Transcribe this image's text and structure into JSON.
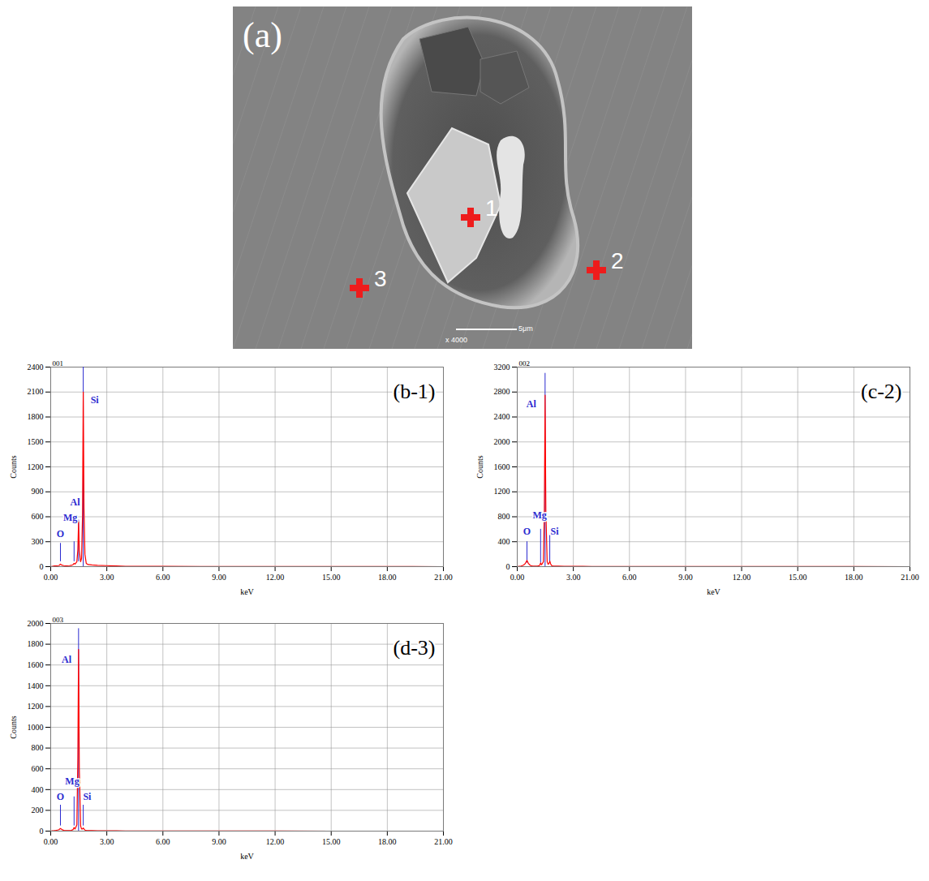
{
  "image": {
    "panel_label": "(a)",
    "points": [
      "1",
      "2",
      "3"
    ],
    "scale_bar_label": "5μm",
    "magnification": "x 4000"
  },
  "chart_data": [
    {
      "type": "line",
      "title": "001",
      "panel_label": "(b-1)",
      "x_label": "keV",
      "y_label": "Counts",
      "color": "#ff0000",
      "grid": true,
      "xlim": [
        0,
        21
      ],
      "xticks": [
        {
          "value": 0,
          "label": "0.00"
        },
        {
          "value": 3,
          "label": "3.00"
        },
        {
          "value": 6,
          "label": "6.00"
        },
        {
          "value": 9,
          "label": "9.00"
        },
        {
          "value": 12,
          "label": "12.00"
        },
        {
          "value": 15,
          "label": "15.00"
        },
        {
          "value": 18,
          "label": "18.00"
        },
        {
          "value": 21,
          "label": "21.00"
        }
      ],
      "ylim": [
        0,
        2400
      ],
      "yticks": [
        0,
        300,
        600,
        900,
        1200,
        1500,
        1800,
        2100,
        2400
      ],
      "x": [
        0,
        0.1,
        0.2,
        0.3,
        0.4,
        0.45,
        0.52,
        0.6,
        0.7,
        0.8,
        1.0,
        1.1,
        1.2,
        1.25,
        1.3,
        1.4,
        1.45,
        1.49,
        1.53,
        1.6,
        1.65,
        1.7,
        1.74,
        1.78,
        1.83,
        1.9,
        2.0,
        2.2,
        2.5,
        3.0,
        3.5,
        4.0,
        5.0,
        6.0,
        8.0,
        10.0,
        12.0,
        15.0,
        18.0,
        21.0
      ],
      "values": [
        0,
        5,
        8,
        10,
        12,
        15,
        30,
        18,
        12,
        10,
        12,
        15,
        25,
        40,
        30,
        60,
        200,
        540,
        200,
        60,
        100,
        600,
        2100,
        700,
        150,
        40,
        25,
        20,
        15,
        12,
        8,
        5,
        4,
        3,
        2,
        2,
        1,
        1,
        1,
        0
      ],
      "element_lines": [
        {
          "label": "O",
          "energy": 0.52,
          "bottom": 60,
          "top": 280,
          "label_x": 0.52,
          "label_y": 390
        },
        {
          "label": "Mg",
          "energy": 1.25,
          "bottom": 60,
          "top": 300,
          "label_x": 1.05,
          "label_y": 590
        },
        {
          "label": "Al",
          "energy": 1.49,
          "bottom": 60,
          "top": 560,
          "label_x": 1.3,
          "label_y": 770
        },
        {
          "label": "Si",
          "energy": 1.74,
          "bottom": 0,
          "top": 2400,
          "label_x": 2.35,
          "label_y": 2000
        }
      ]
    },
    {
      "type": "line",
      "title": "002",
      "panel_label": "(c-2)",
      "x_label": "keV",
      "y_label": "Counts",
      "color": "#ff0000",
      "grid": true,
      "xlim": [
        0,
        21
      ],
      "xticks": [
        {
          "value": 0,
          "label": "0.00"
        },
        {
          "value": 3,
          "label": "3.00"
        },
        {
          "value": 6,
          "label": "6.00"
        },
        {
          "value": 9,
          "label": "9.00"
        },
        {
          "value": 12,
          "label": "12.00"
        },
        {
          "value": 15,
          "label": "15.00"
        },
        {
          "value": 18,
          "label": "18.00"
        },
        {
          "value": 21,
          "label": "21.00"
        }
      ],
      "ylim": [
        0,
        3200
      ],
      "yticks": [
        0,
        400,
        800,
        1200,
        1600,
        2000,
        2400,
        2800,
        3200
      ],
      "x": [
        0,
        0.1,
        0.2,
        0.3,
        0.4,
        0.45,
        0.52,
        0.6,
        0.7,
        0.8,
        1.0,
        1.1,
        1.2,
        1.25,
        1.3,
        1.4,
        1.45,
        1.49,
        1.53,
        1.6,
        1.65,
        1.7,
        1.74,
        1.78,
        1.83,
        1.9,
        2.0,
        2.2,
        2.5,
        3.0,
        3.5,
        4.0,
        5.0,
        6.0,
        8.0,
        10.0,
        12.0,
        15.0,
        18.0,
        21.0
      ],
      "values": [
        0,
        5,
        10,
        20,
        40,
        60,
        100,
        50,
        20,
        12,
        10,
        12,
        20,
        60,
        30,
        80,
        900,
        2750,
        900,
        80,
        40,
        50,
        90,
        50,
        20,
        12,
        10,
        8,
        6,
        5,
        4,
        3,
        3,
        2,
        2,
        1,
        1,
        1,
        1,
        0
      ],
      "element_lines": [
        {
          "label": "O",
          "energy": 0.52,
          "bottom": 60,
          "top": 400,
          "label_x": 0.52,
          "label_y": 560
        },
        {
          "label": "Mg",
          "energy": 1.25,
          "bottom": 60,
          "top": 600,
          "label_x": 1.2,
          "label_y": 820
        },
        {
          "label": "Al",
          "energy": 1.49,
          "bottom": 0,
          "top": 3100,
          "label_x": 0.75,
          "label_y": 2600
        },
        {
          "label": "Si",
          "energy": 1.74,
          "bottom": 60,
          "top": 500,
          "label_x": 2.0,
          "label_y": 560
        }
      ]
    },
    {
      "type": "line",
      "title": "003",
      "panel_label": "(d-3)",
      "x_label": "keV",
      "y_label": "Counts",
      "color": "#ff0000",
      "grid": true,
      "xlim": [
        0,
        21
      ],
      "xticks": [
        {
          "value": 0,
          "label": "0.00"
        },
        {
          "value": 3,
          "label": "3.00"
        },
        {
          "value": 6,
          "label": "6.00"
        },
        {
          "value": 9,
          "label": "9.00"
        },
        {
          "value": 12,
          "label": "12.00"
        },
        {
          "value": 15,
          "label": "15.00"
        },
        {
          "value": 18,
          "label": "18.00"
        },
        {
          "value": 21,
          "label": "21.00"
        }
      ],
      "ylim": [
        0,
        2000
      ],
      "yticks": [
        0,
        200,
        400,
        600,
        800,
        1000,
        1200,
        1400,
        1600,
        1800,
        2000
      ],
      "x": [
        0,
        0.1,
        0.2,
        0.3,
        0.4,
        0.45,
        0.52,
        0.6,
        0.7,
        0.8,
        1.0,
        1.1,
        1.2,
        1.25,
        1.3,
        1.4,
        1.45,
        1.49,
        1.53,
        1.6,
        1.65,
        1.7,
        1.74,
        1.78,
        1.83,
        1.9,
        2.0,
        2.2,
        2.5,
        3.0,
        3.5,
        4.0,
        5.0,
        6.0,
        8.0,
        10.0,
        12.0,
        15.0,
        18.0,
        21.0
      ],
      "values": [
        0,
        3,
        5,
        8,
        12,
        15,
        25,
        15,
        8,
        6,
        6,
        8,
        15,
        35,
        20,
        60,
        700,
        1750,
        600,
        50,
        20,
        20,
        30,
        20,
        10,
        8,
        6,
        5,
        4,
        3,
        3,
        2,
        2,
        1,
        1,
        1,
        1,
        0,
        0,
        0
      ],
      "element_lines": [
        {
          "label": "O",
          "energy": 0.52,
          "bottom": 50,
          "top": 250,
          "label_x": 0.52,
          "label_y": 330
        },
        {
          "label": "Mg",
          "energy": 1.25,
          "bottom": 50,
          "top": 330,
          "label_x": 1.15,
          "label_y": 480
        },
        {
          "label": "Al",
          "energy": 1.49,
          "bottom": 0,
          "top": 1950,
          "label_x": 0.85,
          "label_y": 1650
        },
        {
          "label": "Si",
          "energy": 1.74,
          "bottom": 50,
          "top": 250,
          "label_x": 1.95,
          "label_y": 330
        }
      ]
    }
  ]
}
